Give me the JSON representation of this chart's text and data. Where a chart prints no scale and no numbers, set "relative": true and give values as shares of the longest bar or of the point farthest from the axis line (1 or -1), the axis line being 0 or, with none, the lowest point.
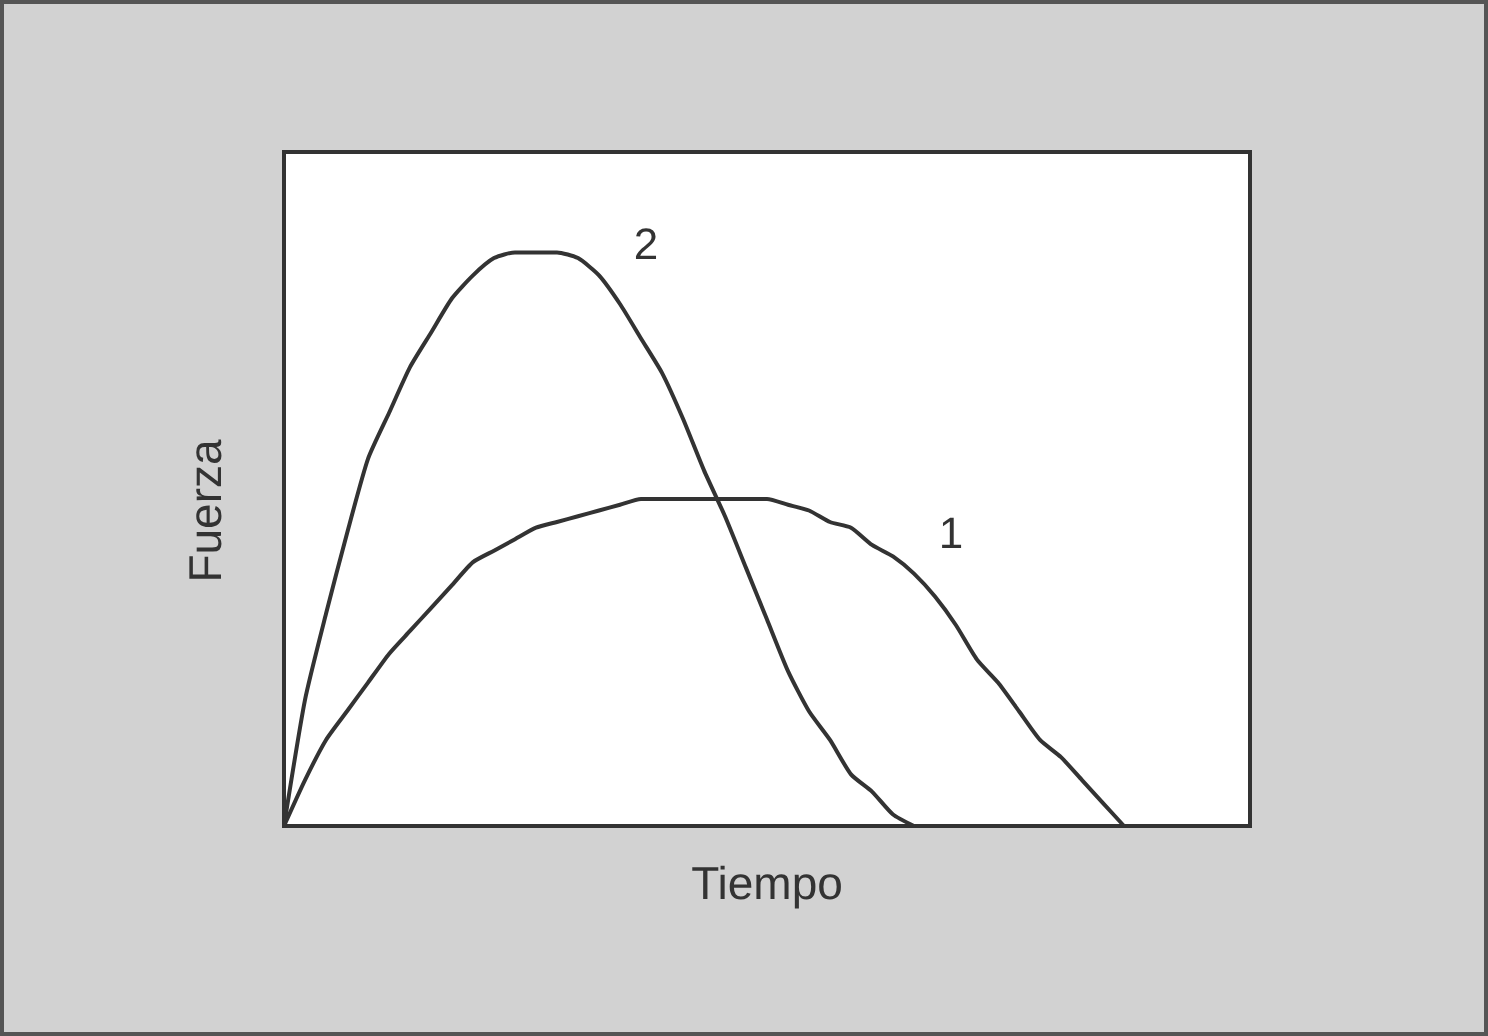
{
  "chart_data": {
    "type": "line",
    "relative": true,
    "xlabel": "Tiempo",
    "ylabel": "Fuerza",
    "marker": "none",
    "line_style": "solid",
    "categories": [
      null,
      null,
      null,
      null,
      null,
      null,
      null,
      null,
      null,
      null,
      null,
      null,
      null,
      null,
      null,
      null,
      null,
      null,
      null,
      null,
      null,
      null,
      null,
      null,
      null,
      null,
      null,
      null,
      null,
      null,
      null,
      null,
      null,
      null,
      null,
      null,
      null,
      null,
      null,
      null,
      null,
      null,
      null,
      null,
      null,
      null,
      null
    ],
    "series": [
      {
        "name": "1",
        "color": "#333333",
        "values": [
          0,
          0.08,
          0.15,
          0.2,
          0.25,
          0.3,
          0.34,
          0.38,
          0.42,
          0.46,
          0.48,
          0.5,
          0.52,
          0.53,
          0.54,
          0.55,
          0.56,
          0.57,
          0.57,
          0.57,
          0.57,
          0.57,
          0.57,
          0.57,
          0.56,
          0.55,
          0.53,
          0.52,
          0.49,
          0.47,
          0.44,
          0.4,
          0.35,
          0.29,
          0.25,
          0.2,
          0.15,
          0.12,
          0.08,
          0.04,
          0,
          null,
          null,
          null,
          null,
          null,
          null
        ]
      },
      {
        "name": "2",
        "color": "#333333",
        "values": [
          0,
          0.22,
          0.37,
          0.51,
          0.64,
          0.72,
          0.8,
          0.86,
          0.92,
          0.96,
          0.99,
          1,
          1,
          1,
          0.99,
          0.96,
          0.91,
          0.85,
          0.79,
          0.71,
          0.62,
          0.54,
          0.45,
          0.36,
          0.27,
          0.2,
          0.15,
          0.09,
          0.06,
          0.02,
          0,
          null,
          null,
          null,
          null,
          null,
          null,
          null,
          null,
          null,
          null,
          null,
          null,
          null,
          null,
          null,
          null
        ]
      }
    ]
  }
}
